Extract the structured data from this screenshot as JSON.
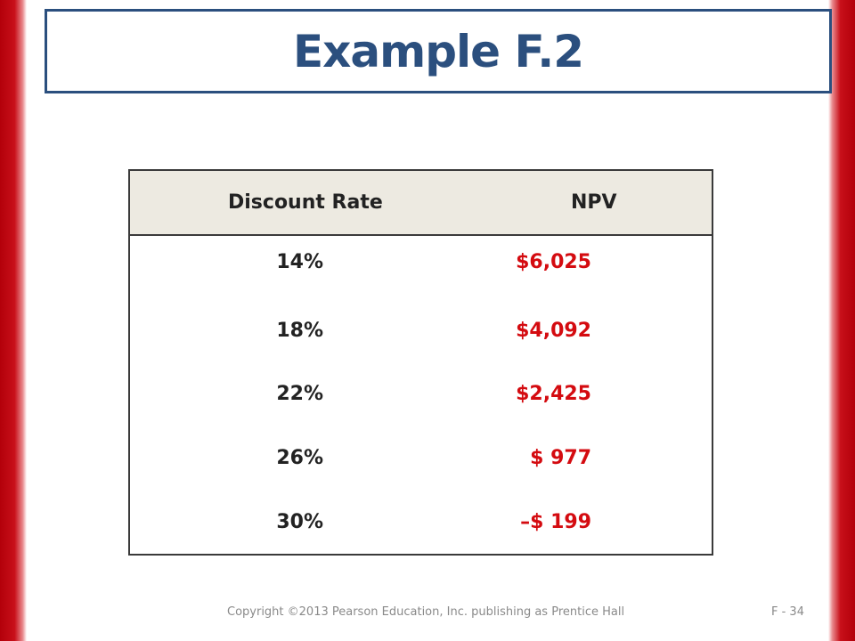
{
  "slide": {
    "title": "Example F.2",
    "accent_color": "#c8101a",
    "title_color": "#2b4f7e"
  },
  "table": {
    "headers": {
      "rate": "Discount Rate",
      "npv": "NPV"
    },
    "rows": [
      {
        "rate": "14%",
        "npv": "$6,025"
      },
      {
        "rate": "18%",
        "npv": "$4,092"
      },
      {
        "rate": "22%",
        "npv": "$2,425"
      },
      {
        "rate": "26%",
        "npv": "$ 977"
      },
      {
        "rate": "30%",
        "npv": "–$ 199"
      }
    ],
    "value_color": "#d40b10"
  },
  "footer": {
    "copyright": "Copyright ©2013 Pearson Education, Inc. publishing as Prentice Hall",
    "page": "F - 34"
  }
}
